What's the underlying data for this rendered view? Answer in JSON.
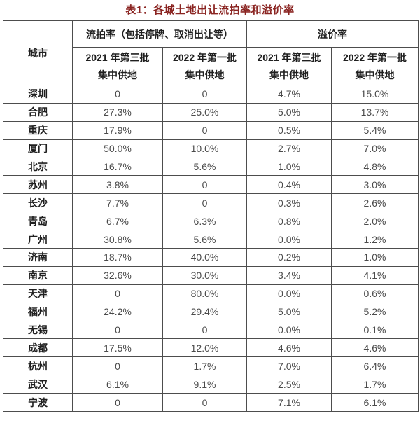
{
  "page": {
    "background": "#ffffff"
  },
  "colors": {
    "title_text": "#8a2421",
    "header_text": "#1f1f1f",
    "city_text": "#1f1f1f",
    "value_text": "#4a4a4a",
    "border": "#4d4d4d",
    "background": "#ffffff"
  },
  "chart_data": {
    "type": "table",
    "title": "表1：各城土地出让流拍率和溢价率",
    "corner_header": "城市",
    "column_groups": [
      {
        "label": "流拍率（包括停牌、取消出让等）",
        "span": 2
      },
      {
        "label": "溢价率",
        "span": 2
      }
    ],
    "subheaders": [
      {
        "line1": "2021 年第三批",
        "line2": "集中供地"
      },
      {
        "line1": "2022 年第一批",
        "line2": "集中供地"
      },
      {
        "line1": "2021 年第三批",
        "line2": "集中供地"
      },
      {
        "line1": "2022 年第一批",
        "line2": "集中供地"
      }
    ],
    "rows": [
      {
        "city": "深圳",
        "values": [
          "0",
          "0",
          "4.7%",
          "15.0%"
        ]
      },
      {
        "city": "合肥",
        "values": [
          "27.3%",
          "25.0%",
          "5.0%",
          "13.7%"
        ]
      },
      {
        "city": "重庆",
        "values": [
          "17.9%",
          "0",
          "0.5%",
          "5.4%"
        ]
      },
      {
        "city": "厦门",
        "values": [
          "50.0%",
          "10.0%",
          "2.7%",
          "7.0%"
        ]
      },
      {
        "city": "北京",
        "values": [
          "16.7%",
          "5.6%",
          "1.0%",
          "4.8%"
        ]
      },
      {
        "city": "苏州",
        "values": [
          "3.8%",
          "0",
          "0.4%",
          "3.0%"
        ]
      },
      {
        "city": "长沙",
        "values": [
          "7.7%",
          "0",
          "0.3%",
          "2.6%"
        ]
      },
      {
        "city": "青岛",
        "values": [
          "6.7%",
          "6.3%",
          "0.8%",
          "2.0%"
        ]
      },
      {
        "city": "广州",
        "values": [
          "30.8%",
          "5.6%",
          "0.0%",
          "1.2%"
        ]
      },
      {
        "city": "济南",
        "values": [
          "18.7%",
          "40.0%",
          "0.2%",
          "1.0%"
        ]
      },
      {
        "city": "南京",
        "values": [
          "32.6%",
          "30.0%",
          "3.4%",
          "4.1%"
        ]
      },
      {
        "city": "天津",
        "values": [
          "0",
          "80.0%",
          "0.0%",
          "0.6%"
        ]
      },
      {
        "city": "福州",
        "values": [
          "24.2%",
          "29.4%",
          "5.0%",
          "5.2%"
        ]
      },
      {
        "city": "无锡",
        "values": [
          "0",
          "0",
          "0.0%",
          "0.1%"
        ]
      },
      {
        "city": "成都",
        "values": [
          "17.5%",
          "12.0%",
          "4.6%",
          "4.6%"
        ]
      },
      {
        "city": "杭州",
        "values": [
          "0",
          "1.7%",
          "7.0%",
          "6.4%"
        ]
      },
      {
        "city": "武汉",
        "values": [
          "6.1%",
          "9.1%",
          "2.5%",
          "1.7%"
        ]
      },
      {
        "city": "宁波",
        "values": [
          "0",
          "0",
          "7.1%",
          "6.1%"
        ]
      }
    ]
  }
}
